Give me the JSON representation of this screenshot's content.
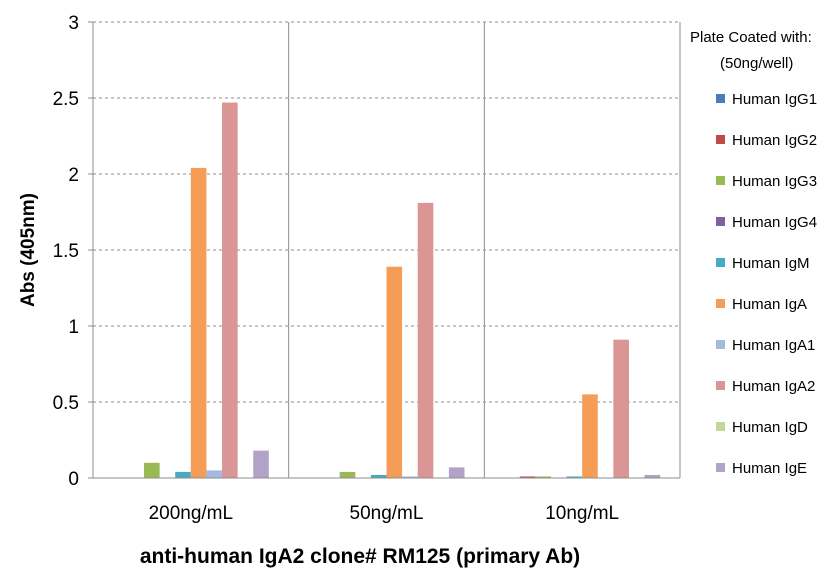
{
  "chart_data": {
    "type": "bar",
    "title": "",
    "xlabel": "anti-human IgA2 clone# RM125 (primary Ab)",
    "ylabel": "Abs (405nm)",
    "ylim": [
      0,
      3
    ],
    "yticks": [
      0,
      0.5,
      1,
      1.5,
      2,
      2.5,
      3
    ],
    "ytick_labels": [
      "0",
      "0.5",
      "1",
      "1.5",
      "2",
      "2.5",
      "3"
    ],
    "grid": "horizontal dashed",
    "legend_position": "right",
    "legend_title": [
      "Plate Coated with:",
      "(50ng/well)"
    ],
    "categories": [
      "200ng/mL",
      "50ng/mL",
      "10ng/mL"
    ],
    "series": [
      {
        "name": "Human IgG1",
        "color": "#4a7ebb",
        "values": [
          0.0,
          0.0,
          0.0
        ]
      },
      {
        "name": "Human IgG2",
        "color": "#be4b48",
        "values": [
          0.0,
          0.0,
          0.01
        ]
      },
      {
        "name": "Human IgG3",
        "color": "#98b954",
        "values": [
          0.1,
          0.04,
          0.01
        ]
      },
      {
        "name": "Human IgG4",
        "color": "#7d60a0",
        "values": [
          0.0,
          0.0,
          0.0
        ]
      },
      {
        "name": "Human IgM",
        "color": "#46aac5",
        "values": [
          0.04,
          0.02,
          0.01
        ]
      },
      {
        "name": "Human IgA",
        "color": "#f59d56",
        "values": [
          2.04,
          1.39,
          0.55
        ]
      },
      {
        "name": "Human IgA1",
        "color": "#a3b9e0",
        "values": [
          0.05,
          0.01,
          0.0
        ]
      },
      {
        "name": "Human IgA2",
        "color": "#d99694",
        "values": [
          2.47,
          1.81,
          0.91
        ]
      },
      {
        "name": "Human IgD",
        "color": "#c3d69b",
        "values": [
          0.0,
          0.0,
          0.0
        ]
      },
      {
        "name": "Human IgE",
        "color": "#b3a2c7",
        "values": [
          0.18,
          0.07,
          0.02
        ]
      }
    ]
  }
}
